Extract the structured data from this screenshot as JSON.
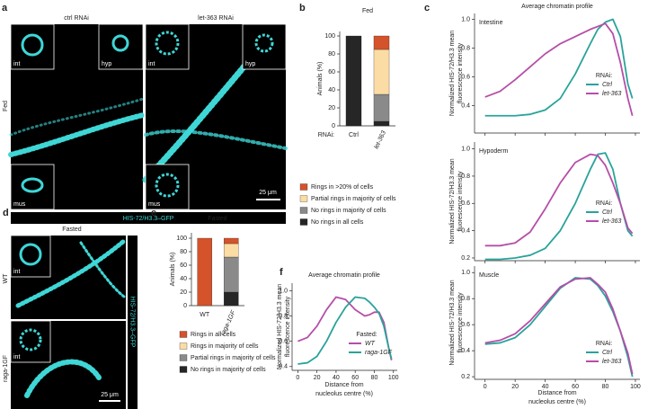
{
  "panels": {
    "a": {
      "letter": "a",
      "condition": "Fed",
      "columns": [
        "ctrl RNAi",
        "let-363 RNAi"
      ],
      "insets": [
        "int",
        "hyp",
        "mus",
        "int",
        "hyp",
        "mus"
      ],
      "scale_bar": "25 μm",
      "channel": "HIS-72/H3.3–GFP"
    },
    "d": {
      "letter": "d",
      "title": "Fasted",
      "rows": [
        "WT",
        "raga-1GF"
      ],
      "insets": [
        "int",
        "int"
      ],
      "scale_bar": "25 μm",
      "channel": "HIS-72/H3.3–GFP"
    }
  },
  "chart_data": [
    {
      "type": "bar",
      "stacked": true,
      "panel_label": "b",
      "title": "Fed",
      "ylabel": "Animals (%)",
      "xlabel": "RNAi:",
      "categories": [
        "Ctrl",
        "let-363"
      ],
      "ylim": [
        0,
        105
      ],
      "yticks": [
        0,
        20,
        40,
        60,
        80,
        100
      ],
      "series": [
        {
          "name": "No rings in all cells",
          "color": "#262626",
          "values": [
            100,
            5
          ]
        },
        {
          "name": "No rings in majority of cells",
          "color": "#8a8a8a",
          "values": [
            0,
            30
          ]
        },
        {
          "name": "Partial rings in majority of cells",
          "color": "#fbdca4",
          "values": [
            0,
            50
          ]
        },
        {
          "name": "Rings in >20% of cells",
          "color": "#d4532a",
          "values": [
            0,
            15
          ]
        }
      ]
    },
    {
      "type": "line",
      "panel_label": "c",
      "title": "Average chromatin profile",
      "subtitle": "Intestine",
      "ylabel": [
        "Normalized HIS-72/H3.3 mean",
        "fluorescence intensity"
      ],
      "legend_title": "RNAi:",
      "x": [
        0,
        10,
        20,
        30,
        40,
        50,
        60,
        70,
        75,
        80,
        85,
        90,
        95,
        98
      ],
      "xlim": [
        -7,
        103
      ],
      "xticks": [
        0,
        20,
        40,
        60,
        80,
        100
      ],
      "xtick_labels": false,
      "ylim": [
        0.21,
        1.04
      ],
      "yticks": [
        0.4,
        0.6,
        0.8,
        {
          "value": 1,
          "label": "1.0"
        }
      ],
      "series": [
        {
          "name": "Ctrl",
          "color": "#2aa39a",
          "values": [
            0.33,
            0.33,
            0.33,
            0.34,
            0.37,
            0.45,
            0.62,
            0.83,
            0.93,
            0.98,
            1.0,
            0.88,
            0.55,
            0.45
          ]
        },
        {
          "name": "let-363",
          "color": "#b54ea8",
          "values": [
            0.46,
            0.5,
            0.58,
            0.67,
            0.76,
            0.83,
            0.88,
            0.93,
            0.95,
            0.97,
            0.9,
            0.7,
            0.45,
            0.33
          ]
        }
      ]
    },
    {
      "type": "line",
      "subtitle": "Hypoderm",
      "ylabel": [
        "Normalized HIS-72/H3.3 mean",
        "fluorescence intensity"
      ],
      "legend_title": "RNAi:",
      "x": [
        0,
        10,
        20,
        30,
        40,
        50,
        60,
        70,
        75,
        80,
        85,
        90,
        95,
        98
      ],
      "xlim": [
        -7,
        103
      ],
      "xticks": [
        0,
        20,
        40,
        60,
        80,
        100
      ],
      "xtick_labels": false,
      "ylim": [
        0.18,
        1.05
      ],
      "yticks": [
        0.2,
        0.4,
        0.6,
        0.8,
        {
          "value": 1,
          "label": "1.0"
        }
      ],
      "series": [
        {
          "name": "Ctrl",
          "color": "#2aa39a",
          "values": [
            0.19,
            0.19,
            0.2,
            0.22,
            0.27,
            0.4,
            0.6,
            0.85,
            0.96,
            0.97,
            0.85,
            0.6,
            0.4,
            0.36
          ]
        },
        {
          "name": "let-363",
          "color": "#b54ea8",
          "values": [
            0.29,
            0.29,
            0.31,
            0.39,
            0.56,
            0.75,
            0.9,
            0.96,
            0.95,
            0.88,
            0.75,
            0.6,
            0.42,
            0.38
          ]
        }
      ]
    },
    {
      "type": "line",
      "subtitle": "Muscle",
      "ylabel": [
        "Normalized HIS-72/H3.3 mean",
        "fluorescence intensity"
      ],
      "legend_title": "RNAi:",
      "xlabel": [
        "Distance from",
        "nucleolus centre (%)"
      ],
      "x": [
        0,
        10,
        20,
        30,
        40,
        50,
        60,
        70,
        75,
        80,
        85,
        90,
        95,
        98
      ],
      "xlim": [
        -7,
        103
      ],
      "xticks": [
        0,
        20,
        40,
        60,
        80,
        100
      ],
      "xtick_labels": true,
      "ylim": [
        0.18,
        1.05
      ],
      "yticks": [
        0.2,
        0.4,
        0.6,
        0.8,
        {
          "value": 1,
          "label": "1.0"
        }
      ],
      "series": [
        {
          "name": "Ctrl",
          "color": "#2aa39a",
          "values": [
            0.45,
            0.46,
            0.5,
            0.6,
            0.74,
            0.88,
            0.96,
            0.95,
            0.9,
            0.82,
            0.7,
            0.55,
            0.35,
            0.2
          ]
        },
        {
          "name": "let-363",
          "color": "#b54ea8",
          "values": [
            0.46,
            0.48,
            0.53,
            0.63,
            0.76,
            0.89,
            0.95,
            0.96,
            0.91,
            0.85,
            0.72,
            0.55,
            0.38,
            0.22
          ]
        }
      ]
    },
    {
      "type": "bar",
      "stacked": true,
      "panel_label": "e",
      "title": "Fasted",
      "ylabel": "Animals (%)",
      "categories": [
        "WT",
        "raga-1GF"
      ],
      "ylim": [
        0,
        108
      ],
      "yticks": [
        0,
        20,
        40,
        60,
        80,
        100
      ],
      "series": [
        {
          "name": "No rings in majority of cells",
          "color": "#262626",
          "values": [
            0,
            20
          ]
        },
        {
          "name": "Partial rings in majority of cells",
          "color": "#8a8a8a",
          "values": [
            0,
            52
          ]
        },
        {
          "name": "Rings in majority of cells",
          "color": "#fbdca4",
          "values": [
            0,
            20
          ]
        },
        {
          "name": "Rings in all cells",
          "color": "#d4532a",
          "values": [
            100,
            8
          ]
        }
      ]
    },
    {
      "type": "line",
      "panel_label": "f",
      "title": "Average chromatin profile",
      "ylabel": [
        "Normalized HIS-72/H3.3 mean",
        "fluorescence intensity"
      ],
      "legend_title": "Fasted:",
      "xlabel": [
        "Distance from",
        "nucleolus centre (%)"
      ],
      "x": [
        0,
        10,
        20,
        30,
        40,
        50,
        60,
        70,
        75,
        80,
        85,
        90,
        95,
        98
      ],
      "xlim": [
        -6,
        104
      ],
      "xticks": [
        0,
        20,
        40,
        60,
        80,
        100
      ],
      "xtick_labels": true,
      "ylim": [
        0.37,
        1.06
      ],
      "yticks": [
        0.4,
        0.6,
        0.8,
        {
          "value": 1,
          "label": "1.0"
        }
      ],
      "series": [
        {
          "name": "WT",
          "color": "#b54ea8",
          "values": [
            0.6,
            0.63,
            0.72,
            0.85,
            0.95,
            0.93,
            0.85,
            0.8,
            0.81,
            0.83,
            0.83,
            0.75,
            0.55,
            0.45
          ]
        },
        {
          "name": "raga-1GF",
          "color": "#2aa39a",
          "values": [
            0.42,
            0.43,
            0.48,
            0.6,
            0.75,
            0.87,
            0.95,
            0.94,
            0.91,
            0.87,
            0.82,
            0.72,
            0.55,
            0.46
          ]
        }
      ]
    }
  ]
}
